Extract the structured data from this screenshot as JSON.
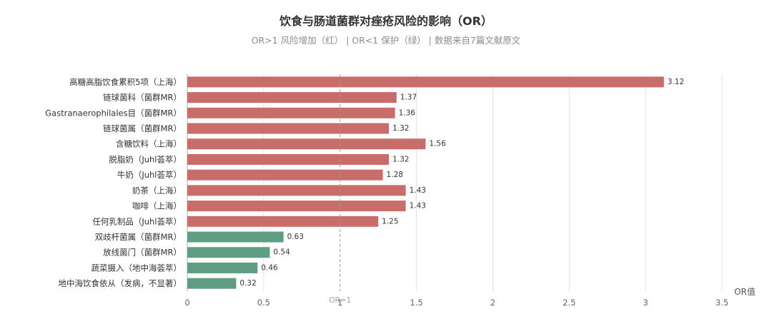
{
  "chart_data": {
    "type": "bar",
    "orientation": "horizontal",
    "title": "饮食与肠道菌群对痤疮风险的影响（OR）",
    "subtitle": "OR>1 风险增加（红） | OR<1 保护（绿） | 数据来自7篇文献原文",
    "categories": [
      "高糖高脂饮食累积5项（上海）",
      "链球菌科（菌群MR）",
      "Gastranaerophilales目（菌群MR）",
      "链球菌属（菌群MR）",
      "含糖饮料（上海）",
      "脱脂奶（Juhl荟萃）",
      "牛奶（Juhl荟萃）",
      "奶茶（上海）",
      "咖啡（上海）",
      "任何乳制品（Juhl荟萃）",
      "双歧杆菌属（菌群MR）",
      "放线菌门（菌群MR）",
      "蔬菜摄入（地中海荟萃）",
      "地中海饮食依从（发病，不显著）"
    ],
    "values": [
      3.12,
      1.37,
      1.36,
      1.32,
      1.56,
      1.32,
      1.28,
      1.43,
      1.43,
      1.25,
      0.63,
      0.54,
      0.46,
      0.32
    ],
    "value_labels": [
      "3.12",
      "1.37",
      "1.36",
      "1.32",
      "1.56",
      "1.32",
      "1.28",
      "1.43",
      "1.43",
      "1.25",
      "0.63",
      "0.54",
      "0.46",
      "0.32"
    ],
    "xlim": [
      0,
      3.5
    ],
    "xticks": [
      0,
      0.5,
      1,
      1.5,
      2,
      2.5,
      3,
      3.5
    ],
    "xtick_labels": [
      "0",
      "0.5",
      "1",
      "1.5",
      "2",
      "2.5",
      "3",
      "3.5"
    ],
    "xlabel": "OR值",
    "reference_line": {
      "value": 1,
      "label": "OR=1"
    },
    "grid": "vertical",
    "colors": {
      "risk": "#c96d6a",
      "protective": "#5f9e84",
      "grid": "#e3e3e3",
      "axis": "#b0b0b0"
    }
  }
}
